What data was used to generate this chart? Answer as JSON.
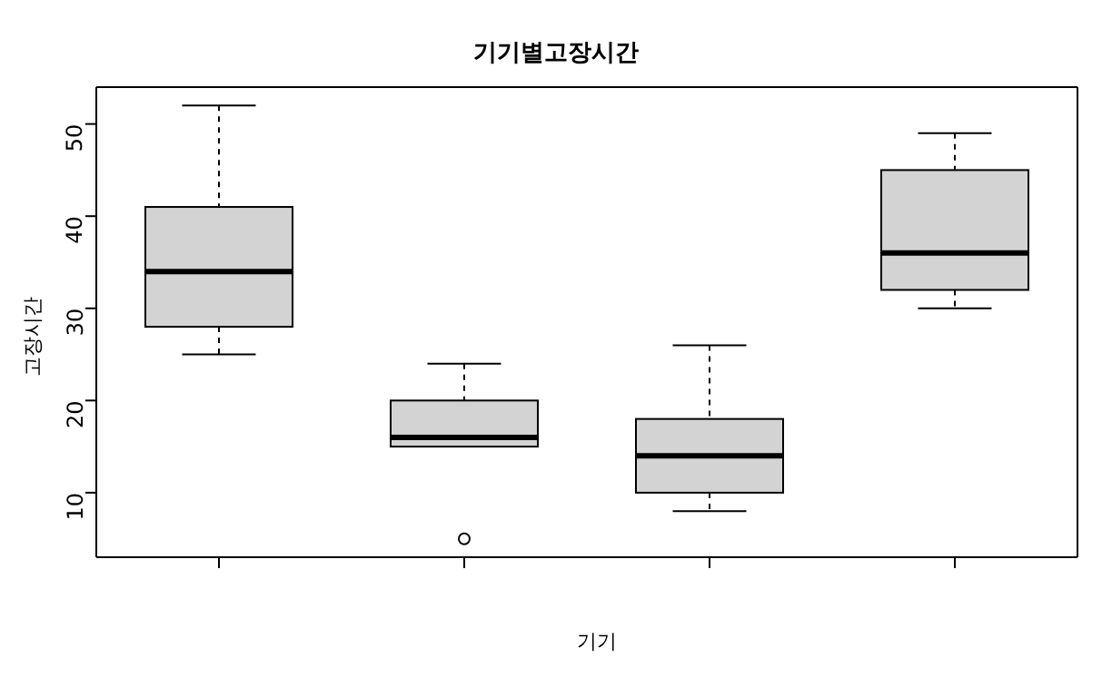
{
  "chart_data": {
    "type": "box",
    "title": "기기별고장시간",
    "xlabel": "기기",
    "ylabel": "고장시간",
    "categories": [
      null,
      null,
      null,
      null
    ],
    "boxes": [
      {
        "low": 25,
        "q1": 28,
        "median": 34,
        "q3": 41,
        "high": 52
      },
      {
        "low": 15,
        "q1": 15,
        "median": 16,
        "q3": 20,
        "high": 24,
        "outliers": [
          5
        ]
      },
      {
        "low": 8,
        "q1": 10,
        "median": 14,
        "q3": 18,
        "high": 26
      },
      {
        "low": 30,
        "q1": 32,
        "median": 36,
        "q3": 45,
        "high": 49
      }
    ],
    "color": "#d3d3d3",
    "ylim": [
      3,
      54
    ],
    "yticks": [
      10,
      20,
      30,
      40,
      50
    ],
    "grid": false,
    "legend": false
  }
}
